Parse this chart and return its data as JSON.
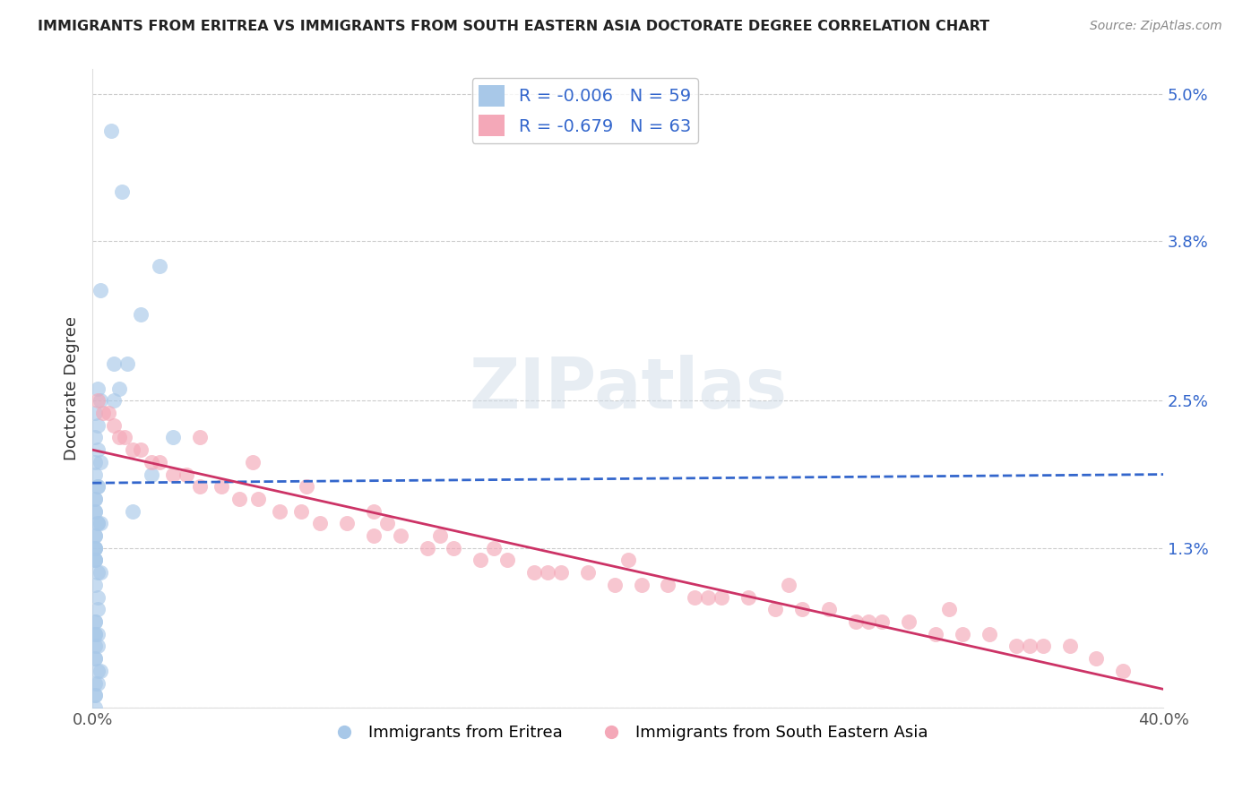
{
  "title": "IMMIGRANTS FROM ERITREA VS IMMIGRANTS FROM SOUTH EASTERN ASIA DOCTORATE DEGREE CORRELATION CHART",
  "source": "Source: ZipAtlas.com",
  "xlabel_blue": "Immigrants from Eritrea",
  "xlabel_pink": "Immigrants from South Eastern Asia",
  "ylabel": "Doctorate Degree",
  "R_blue": -0.006,
  "N_blue": 59,
  "R_pink": -0.679,
  "N_pink": 63,
  "color_blue": "#a8c8e8",
  "color_pink": "#f4a8b8",
  "line_color_blue": "#3366cc",
  "line_color_pink": "#cc3366",
  "xlim": [
    0.0,
    0.4
  ],
  "ylim": [
    0.0,
    0.052
  ],
  "ytick_vals": [
    0.0,
    0.013,
    0.025,
    0.038,
    0.05
  ],
  "ytick_labels": [
    "",
    "1.3%",
    "2.5%",
    "3.8%",
    "5.0%"
  ],
  "xtick_vals": [
    0.0,
    0.1,
    0.2,
    0.3,
    0.4
  ],
  "xtick_labels": [
    "0.0%",
    "",
    "",
    "",
    "40.0%"
  ],
  "blue_line_x0": 0.0,
  "blue_line_x1": 0.4,
  "blue_line_y0": 0.0183,
  "blue_line_y1": 0.019,
  "pink_line_x0": 0.0,
  "pink_line_x1": 0.4,
  "pink_line_y0": 0.021,
  "pink_line_y1": 0.0015,
  "watermark": "ZIPatlas",
  "background_color": "#ffffff",
  "grid_color": "#cccccc",
  "blue_dots_x": [
    0.007,
    0.011,
    0.003,
    0.008,
    0.013,
    0.002,
    0.003,
    0.001,
    0.002,
    0.001,
    0.002,
    0.003,
    0.001,
    0.001,
    0.002,
    0.002,
    0.001,
    0.001,
    0.001,
    0.001,
    0.002,
    0.002,
    0.003,
    0.001,
    0.001,
    0.001,
    0.001,
    0.001,
    0.001,
    0.001,
    0.001,
    0.002,
    0.003,
    0.001,
    0.002,
    0.002,
    0.001,
    0.001,
    0.001,
    0.001,
    0.002,
    0.001,
    0.002,
    0.001,
    0.001,
    0.002,
    0.003,
    0.002,
    0.001,
    0.001,
    0.001,
    0.001,
    0.025,
    0.018,
    0.01,
    0.03,
    0.022,
    0.015,
    0.008
  ],
  "blue_dots_y": [
    0.047,
    0.042,
    0.034,
    0.028,
    0.028,
    0.026,
    0.025,
    0.024,
    0.023,
    0.022,
    0.021,
    0.02,
    0.02,
    0.019,
    0.018,
    0.018,
    0.017,
    0.017,
    0.016,
    0.016,
    0.015,
    0.015,
    0.015,
    0.014,
    0.014,
    0.013,
    0.013,
    0.013,
    0.012,
    0.012,
    0.012,
    0.011,
    0.011,
    0.01,
    0.009,
    0.008,
    0.007,
    0.007,
    0.006,
    0.006,
    0.006,
    0.005,
    0.005,
    0.004,
    0.004,
    0.003,
    0.003,
    0.002,
    0.002,
    0.001,
    0.001,
    0.0,
    0.036,
    0.032,
    0.026,
    0.022,
    0.019,
    0.016,
    0.025
  ],
  "pink_dots_x": [
    0.002,
    0.004,
    0.006,
    0.008,
    0.01,
    0.012,
    0.015,
    0.018,
    0.022,
    0.025,
    0.03,
    0.035,
    0.04,
    0.048,
    0.055,
    0.062,
    0.07,
    0.078,
    0.085,
    0.095,
    0.105,
    0.115,
    0.125,
    0.135,
    0.145,
    0.155,
    0.165,
    0.175,
    0.185,
    0.195,
    0.205,
    0.215,
    0.225,
    0.235,
    0.245,
    0.255,
    0.265,
    0.275,
    0.285,
    0.295,
    0.305,
    0.315,
    0.325,
    0.335,
    0.345,
    0.355,
    0.365,
    0.375,
    0.385,
    0.105,
    0.06,
    0.13,
    0.2,
    0.26,
    0.32,
    0.15,
    0.08,
    0.04,
    0.17,
    0.23,
    0.29,
    0.35,
    0.11
  ],
  "pink_dots_y": [
    0.025,
    0.024,
    0.024,
    0.023,
    0.022,
    0.022,
    0.021,
    0.021,
    0.02,
    0.02,
    0.019,
    0.019,
    0.018,
    0.018,
    0.017,
    0.017,
    0.016,
    0.016,
    0.015,
    0.015,
    0.014,
    0.014,
    0.013,
    0.013,
    0.012,
    0.012,
    0.011,
    0.011,
    0.011,
    0.01,
    0.01,
    0.01,
    0.009,
    0.009,
    0.009,
    0.008,
    0.008,
    0.008,
    0.007,
    0.007,
    0.007,
    0.006,
    0.006,
    0.006,
    0.005,
    0.005,
    0.005,
    0.004,
    0.003,
    0.016,
    0.02,
    0.014,
    0.012,
    0.01,
    0.008,
    0.013,
    0.018,
    0.022,
    0.011,
    0.009,
    0.007,
    0.005,
    0.015
  ]
}
